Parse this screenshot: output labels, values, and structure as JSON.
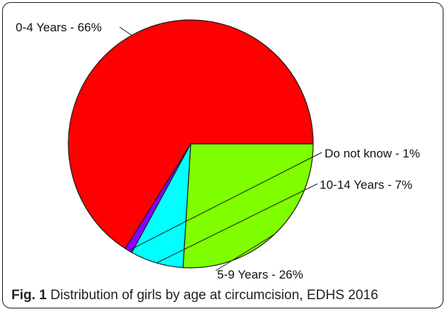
{
  "chart_data": {
    "type": "pie",
    "slices": [
      {
        "label": "0-4 Years - 66%",
        "value": 66,
        "color": "#ff0000"
      },
      {
        "label": "Do not know - 1%",
        "value": 1,
        "color": "#8b00ff"
      },
      {
        "label": "10-14 Years - 7%",
        "value": 7,
        "color": "#00ffff"
      },
      {
        "label": "5-9 Years - 26%",
        "value": 26,
        "color": "#7fff00"
      }
    ],
    "start": "3 o'clock",
    "direction": "counterclockwise",
    "outline_color": "#1a1a1a"
  },
  "caption": {
    "fig_label": "Fig. 1",
    "text": " Distribution of girls by age at circumcision, EDHS 2016"
  }
}
